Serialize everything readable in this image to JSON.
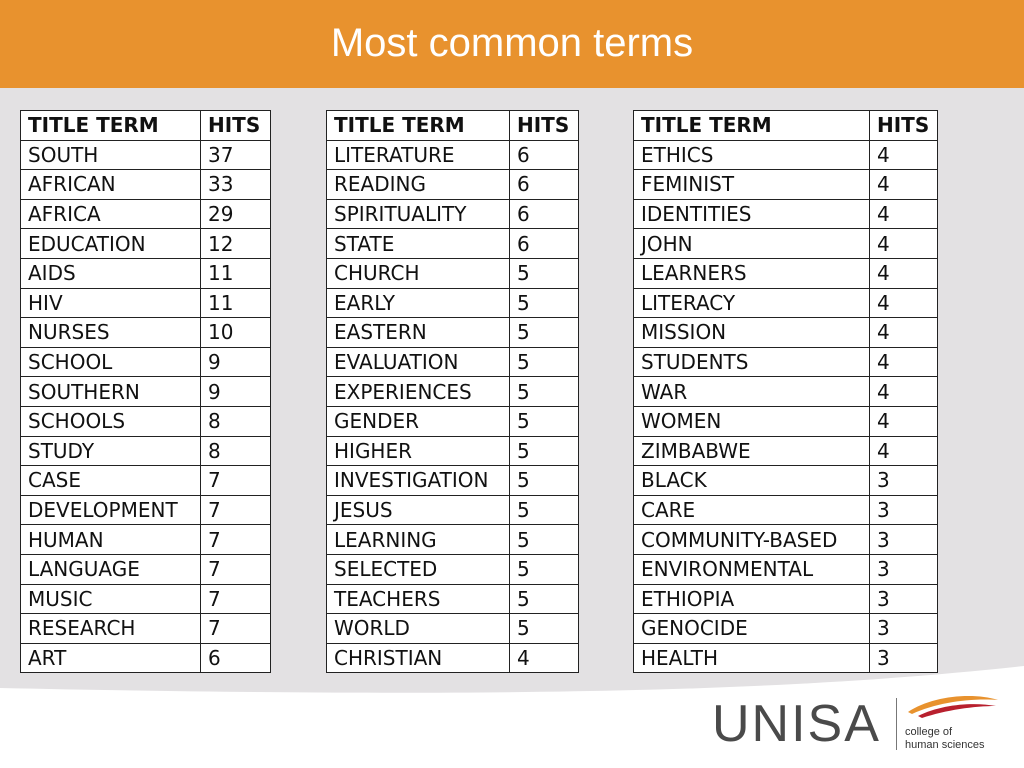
{
  "slide": {
    "title": "Most common terms"
  },
  "colors": {
    "header": "#e8922e",
    "background": "#e3e1e3",
    "logo_orange": "#e8922e",
    "logo_red": "#b8202e"
  },
  "tables": [
    {
      "header": [
        "TITLE TERM",
        "HITS"
      ],
      "rows": [
        [
          "SOUTH",
          "37"
        ],
        [
          "AFRICAN",
          "33"
        ],
        [
          "AFRICA",
          "29"
        ],
        [
          "EDUCATION",
          "12"
        ],
        [
          "AIDS",
          "11"
        ],
        [
          "HIV",
          "11"
        ],
        [
          "NURSES",
          "10"
        ],
        [
          "SCHOOL",
          "9"
        ],
        [
          "SOUTHERN",
          "9"
        ],
        [
          "SCHOOLS",
          "8"
        ],
        [
          "STUDY",
          "8"
        ],
        [
          "CASE",
          "7"
        ],
        [
          "DEVELOPMENT",
          "7"
        ],
        [
          "HUMAN",
          "7"
        ],
        [
          "LANGUAGE",
          "7"
        ],
        [
          "MUSIC",
          "7"
        ],
        [
          "RESEARCH",
          "7"
        ],
        [
          "ART",
          "6"
        ]
      ]
    },
    {
      "header": [
        "TITLE TERM",
        "HITS"
      ],
      "rows": [
        [
          "LITERATURE",
          "6"
        ],
        [
          "READING",
          "6"
        ],
        [
          "SPIRITUALITY",
          "6"
        ],
        [
          "STATE",
          "6"
        ],
        [
          "CHURCH",
          "5"
        ],
        [
          "EARLY",
          "5"
        ],
        [
          "EASTERN",
          "5"
        ],
        [
          "EVALUATION",
          "5"
        ],
        [
          "EXPERIENCES",
          "5"
        ],
        [
          "GENDER",
          "5"
        ],
        [
          "HIGHER",
          "5"
        ],
        [
          "INVESTIGATION",
          "5"
        ],
        [
          "JESUS",
          "5"
        ],
        [
          "LEARNING",
          "5"
        ],
        [
          "SELECTED",
          "5"
        ],
        [
          "TEACHERS",
          "5"
        ],
        [
          "WORLD",
          "5"
        ],
        [
          "CHRISTIAN",
          "4"
        ]
      ]
    },
    {
      "header": [
        "TITLE TERM",
        "HITS"
      ],
      "rows": [
        [
          "ETHICS",
          "4"
        ],
        [
          "FEMINIST",
          "4"
        ],
        [
          "IDENTITIES",
          "4"
        ],
        [
          "JOHN",
          "4"
        ],
        [
          "LEARNERS",
          "4"
        ],
        [
          "LITERACY",
          "4"
        ],
        [
          "MISSION",
          "4"
        ],
        [
          "STUDENTS",
          "4"
        ],
        [
          "WAR",
          "4"
        ],
        [
          "WOMEN",
          "4"
        ],
        [
          "ZIMBABWE",
          "4"
        ],
        [
          "BLACK",
          "3"
        ],
        [
          "CARE",
          "3"
        ],
        [
          "COMMUNITY-BASED",
          "3"
        ],
        [
          "ENVIRONMENTAL",
          "3"
        ],
        [
          "ETHIOPIA",
          "3"
        ],
        [
          "GENOCIDE",
          "3"
        ],
        [
          "HEALTH",
          "3"
        ]
      ]
    }
  ],
  "logo": {
    "name": "UNISA",
    "subtitle": "college of\nhuman sciences"
  }
}
